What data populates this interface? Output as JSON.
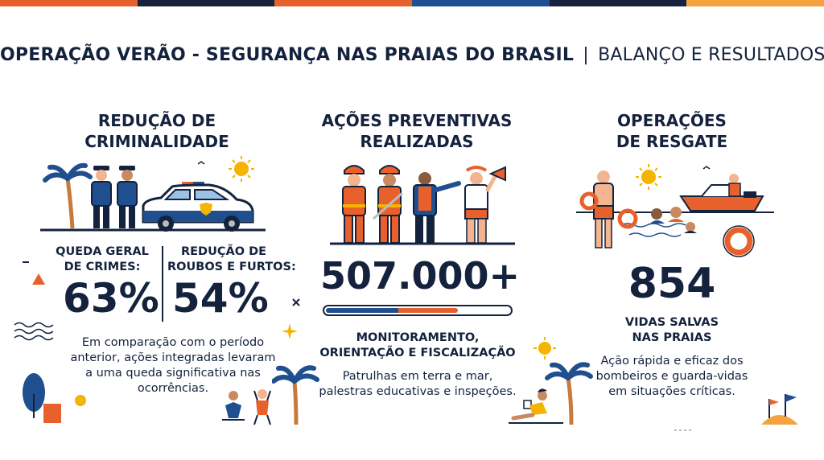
{
  "colors": {
    "navy": "#14223d",
    "blue": "#1f4f8f",
    "orange": "#e8612c",
    "sun": "#f4b400",
    "topbar": [
      "#e8612c",
      "#14223d",
      "#e8612c",
      "#1f4f8f",
      "#14223d",
      "#f4a340"
    ]
  },
  "header": {
    "title_bold": "OPERAÇÃO VERÃO - SEGURANÇA NAS PRAIAS DO BRASIL",
    "separator": "|",
    "title_light": "BALANÇO E RESULTADOS"
  },
  "crime": {
    "title_line1": "REDUÇÃO DE",
    "title_line2": "CRIMINALIDADE",
    "stat1": {
      "label_line1": "QUEDA GERAL",
      "label_line2": "DE CRIMES:",
      "value": "63%"
    },
    "stat2": {
      "label_line1": "REDUÇÃO DE",
      "label_line2": "ROUBOS E FURTOS:",
      "value": "54%"
    },
    "text_line1": "Em comparação com o período",
    "text_line2": "anterior, ações integradas levaram",
    "text_line3": "a uma queda significativa nas",
    "text_line4": "ocorrências.",
    "icons": [
      "palm-tree-icon",
      "police-officer-icon",
      "police-car-icon",
      "sun-icon"
    ]
  },
  "prevent": {
    "title_line1": "AÇÕES PREVENTIVAS",
    "title_line2": "REALIZADAS",
    "value": "507.000+",
    "progress": 0.72,
    "sub_line1": "MONITORAMENTO,",
    "sub_line2": "ORIENTAÇÃO E FISCALIZAÇÃO",
    "text_line1": "Patrulhas em terra e mar,",
    "text_line2": "palestras educativas e inspeções.",
    "icons": [
      "firefighter-icon",
      "safety-officer-icon",
      "lifeguard-megaphone-icon"
    ]
  },
  "rescue": {
    "title_line1": "OPERAÇÕES",
    "title_line2": "DE RESGATE",
    "value": "854",
    "sub_line1": "VIDAS SALVAS",
    "sub_line2": "NAS PRAIAS",
    "text_line1": "Ação rápida e eficaz dos",
    "text_line2": "bombeiros e guarda-vidas",
    "text_line3": "em situações críticas.",
    "icons": [
      "lifeguard-icon",
      "rescue-boat-icon",
      "lifebuoy-icon",
      "swimmers-icon"
    ]
  }
}
